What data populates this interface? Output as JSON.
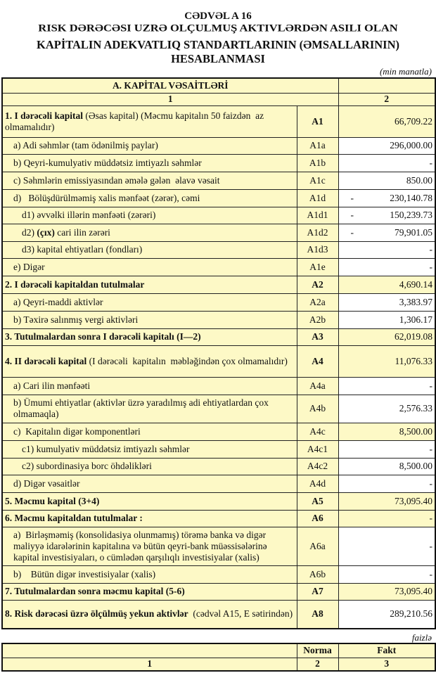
{
  "header": {
    "table_no": "CƏDVƏL A 16",
    "title_line1": "RISK DƏRƏCƏSI UZRƏ OLÇULMUŞ AKTIVLƏRDƏN ASILI OLAN",
    "title_line2": "KAPİTALIN ADEKVATLIQ STANDARTLARININ (ƏMSALLARININ)",
    "title_line3": "HESABLANMASI",
    "unit": "(min manatla)"
  },
  "table1": {
    "section_title": "A. KAPİTAL VƏSAİTLƏRİ",
    "col1": "1",
    "col2": "2",
    "rows": [
      {
        "bold": "1. I dərəcəli kapital",
        "text": " (Əsas kapital) (Məcmu kapitalın 50 faizdən  az olmamalıdır)",
        "code": "A1",
        "value": "66,709.22",
        "neg": false,
        "indent": 0,
        "main": true,
        "h": 45
      },
      {
        "bold": "",
        "text": "a) Adi səhmlər (tam ödənilmiş paylar)",
        "code": "A1a",
        "value": "296,000.00",
        "neg": false,
        "indent": 1,
        "main": false,
        "h": 24
      },
      {
        "bold": "",
        "text": "b) Qeyri-kumulyativ müddətsiz imtiyazlı səhmlər",
        "code": "A1b",
        "value": "-",
        "neg": false,
        "indent": 1,
        "main": false,
        "h": 25
      },
      {
        "bold": "",
        "text": "c) Səhmlərin emissiyasından əmələ gələn  əlavə vəsait",
        "code": "A1c",
        "value": "850.00",
        "neg": false,
        "indent": 1,
        "main": false,
        "h": 25
      },
      {
        "bold": "",
        "text": "d)   Bölüşdürülməmiş xalis mənfəət (zərər), cəmi",
        "code": "A1d",
        "value": "230,140.78",
        "neg": true,
        "indent": 1,
        "main": false,
        "h": 25
      },
      {
        "bold": "",
        "text": "d1) əvvəlki illərin mənfəəti (zərəri)",
        "code": "A1d1",
        "value": "150,239.73",
        "neg": true,
        "indent": 2,
        "main": false,
        "h": 24
      },
      {
        "bold": "(çıx)",
        "pre": "d2) ",
        "text": " cari ilin zərəri",
        "code": "A1d2",
        "value": "79,901.05",
        "neg": true,
        "indent": 2,
        "main": false,
        "h": 25
      },
      {
        "bold": "",
        "text": "d3) kapital ehtiyatları (fondları)",
        "code": "A1d3",
        "value": "-",
        "neg": false,
        "indent": 2,
        "main": false,
        "h": 24
      },
      {
        "bold": "",
        "text": "e) Digər",
        "code": "A1e",
        "value": "-",
        "neg": false,
        "indent": 1,
        "main": false,
        "h": 25
      },
      {
        "bold": "2. I dərəcəli kapitaldan  tutulmalar",
        "text": "",
        "code": "A2",
        "value": "4,690.14",
        "neg": false,
        "indent": 0,
        "main": true,
        "h": 25
      },
      {
        "bold": "",
        "text": "a) Qeyri-maddi aktivlər",
        "code": "A2a",
        "value": "3,383.97",
        "neg": false,
        "indent": 1,
        "main": false,
        "h": 25
      },
      {
        "bold": "",
        "text": "b) Təxirə salınmış vergi aktivləri",
        "code": "A2b",
        "value": "1,306.17",
        "neg": false,
        "indent": 1,
        "main": false,
        "h": 25
      },
      {
        "bold": "3. Tutulmalardan  sonra I dərəcəli kapitalı (I—2)",
        "text": "",
        "code": "A3",
        "value": "62,019.08",
        "neg": false,
        "indent": 0,
        "main": true,
        "h": 24
      },
      {
        "bold": "4. II dərəcəli  kapital",
        "text": " (I dərəcəli  kapitalın  məbləğindən çox olmamalıdır)",
        "code": "A4",
        "value": "11,076.33",
        "neg": false,
        "indent": 0,
        "main": true,
        "h": 45
      },
      {
        "bold": "",
        "text": "a) Cari ilin mənfəəti",
        "code": "A4a",
        "value": "-",
        "neg": false,
        "indent": 1,
        "main": false,
        "h": 25
      },
      {
        "bold": "",
        "text": "b) Ümumi ehtiyatlar (aktivlər üzrə yaradılmış adi ehtiyatlardan çox olmamaqla)",
        "code": "A4b",
        "value": "2,576.33",
        "neg": false,
        "indent": 1,
        "main": false,
        "h": 40
      },
      {
        "bold": "",
        "text": "c)  Kapitalın digər komponentləri",
        "code": "A4c",
        "value": "8,500.00",
        "neg": false,
        "indent": 1,
        "main": false,
        "yellow": true,
        "h": 25
      },
      {
        "bold": "",
        "text": "c1) kumulyativ müddətsiz imtiyazlı səhmlər",
        "code": "A4c1",
        "value": "-",
        "neg": false,
        "indent": 2,
        "main": false,
        "h": 25
      },
      {
        "bold": "",
        "text": "c2) subordinasiya borc öhdəlikləri",
        "code": "A4c2",
        "value": "8,500.00",
        "neg": false,
        "indent": 2,
        "main": false,
        "h": 24
      },
      {
        "bold": "",
        "text": "d) Digər vəsaitlər",
        "code": "A4d",
        "value": "-",
        "neg": false,
        "indent": 1,
        "main": false,
        "h": 25
      },
      {
        "bold": "5. Məcmu kapital (3+4)",
        "text": "",
        "code": "A5",
        "value": "73,095.40",
        "neg": false,
        "indent": 0,
        "main": true,
        "h": 25
      },
      {
        "bold": "6. Məcmu kapitaldan tutulmalar :",
        "text": "",
        "code": "A6",
        "value": "-",
        "neg": false,
        "indent": 0,
        "main": true,
        "h": 24
      },
      {
        "bold": "",
        "text": "a)  Birləşməmiş (konsolidasiya olunmamış) törəmə banka və digər maliyyə idarələrinin kapitalına və bütün qeyri-bank müəssisələrinə kapital investisiyaları, o cümlədən qarşılıqlı investisiyalar (xalis)",
        "code": "A6a",
        "value": "-",
        "neg": false,
        "indent": 1,
        "main": false,
        "h": 55
      },
      {
        "bold": "",
        "text": "b)    Bütün digər investisiyalar (xalis)",
        "code": "A6b",
        "value": "-",
        "neg": false,
        "indent": 1,
        "main": false,
        "h": 25
      },
      {
        "bold": "7. Tutulmalardan  sonra məcmu kapital (5-6)",
        "text": "",
        "code": "A7",
        "value": "73,095.40",
        "neg": false,
        "indent": 0,
        "main": true,
        "h": 24
      },
      {
        "bold": "8. Risk dərəcəsi üzrə ölçülmüş  yekun aktivlər",
        "text": "  (cədvəl A15, E sətirindən)",
        "code": "A8",
        "value": "289,210.56",
        "neg": false,
        "indent": 0,
        "main": true,
        "white": true,
        "h": 41
      }
    ]
  },
  "table2": {
    "unit": "faizlə",
    "norma": "Norma",
    "fakt": "Fakt",
    "col1": "1",
    "col2": "2",
    "col3": "3"
  },
  "colors": {
    "cell_fill": "#fdf9c6",
    "border": "#222222"
  }
}
